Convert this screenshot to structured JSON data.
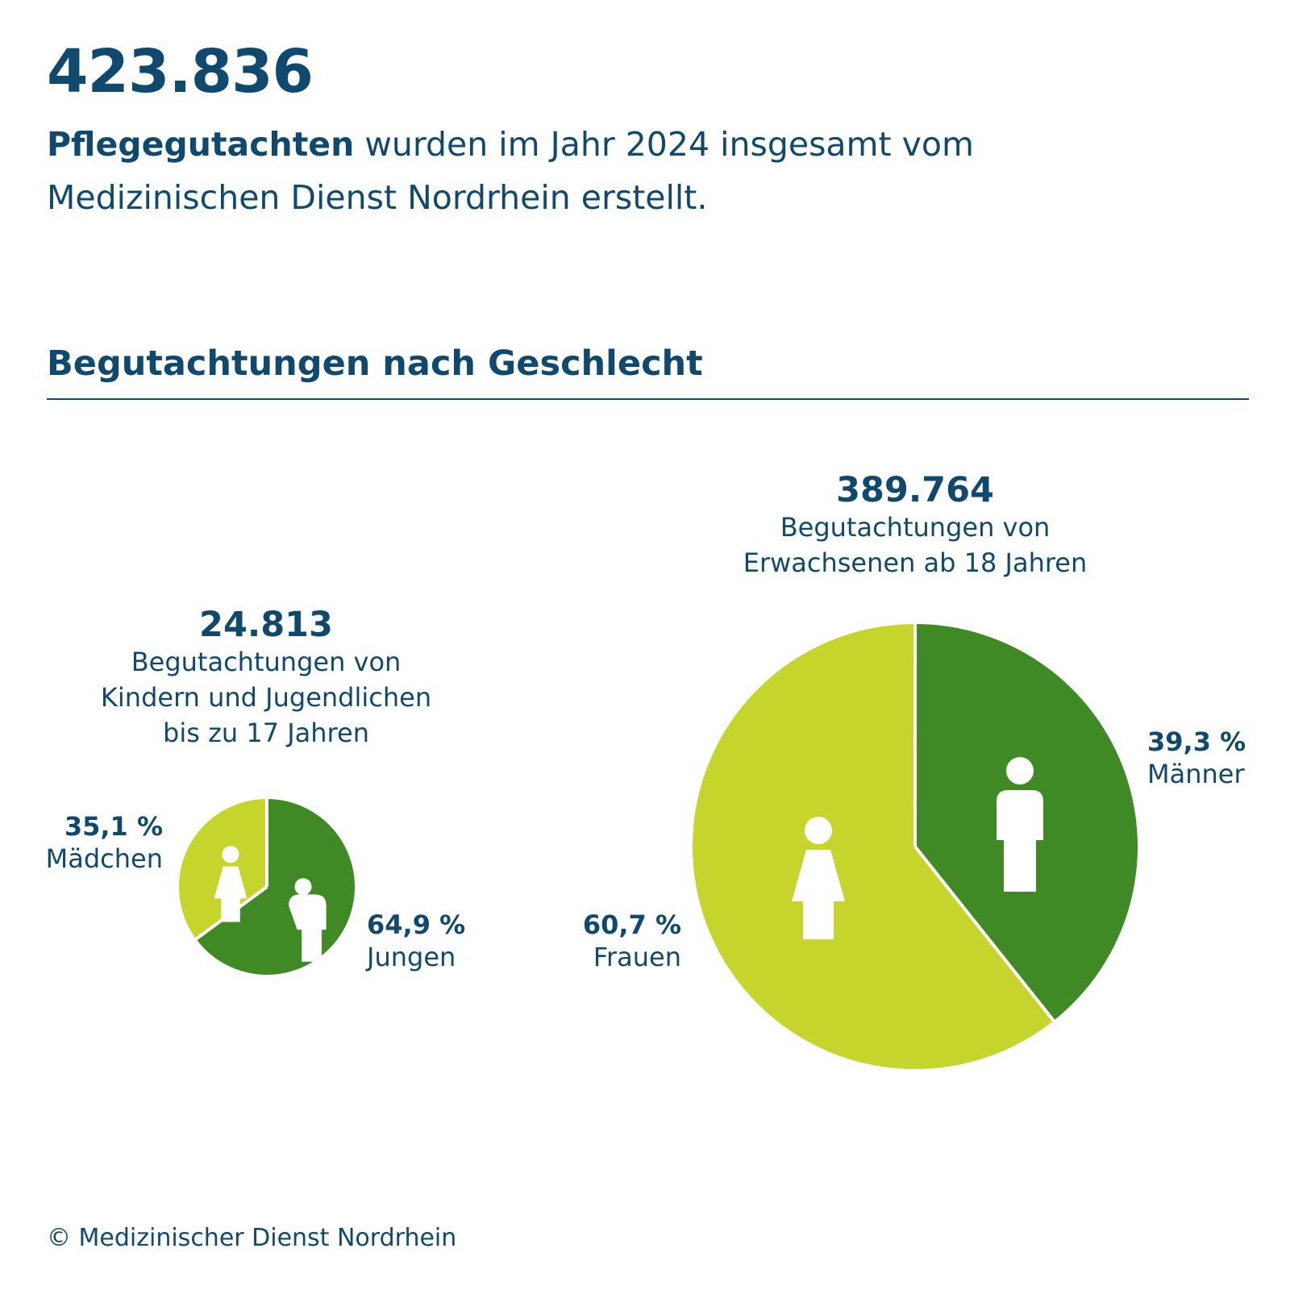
{
  "header": {
    "total": "423.836",
    "intro_bold": "Pflegegutachten",
    "intro_rest": " wurden im Jahr 2024 insgesamt vom Medizinischen Dienst Nordrhein erstellt."
  },
  "section": {
    "title": "Begutachtungen nach Geschlecht"
  },
  "colors": {
    "text": "#0f4a6e",
    "dark_green": "#3f8a24",
    "light_green": "#c5d52c"
  },
  "children": {
    "total": "24.813",
    "subtitle_lines": [
      "Begutachtungen von",
      "Kindern und Jugendlichen",
      "bis zu 17 Jahren"
    ],
    "girls_pct": "35,1 %",
    "girls_label": "Mädchen",
    "boys_pct": "64,9 %",
    "boys_label": "Jungen"
  },
  "adults": {
    "total": "389.764",
    "subtitle_lines": [
      "Begutachtungen von",
      "Erwachsenen ab 18 Jahren"
    ],
    "men_pct": "39,3 %",
    "men_label": "Männer",
    "women_pct": "60,7 %",
    "women_label": "Frauen"
  },
  "footer": {
    "copyright": "© Medizinischer Dienst Nordrhein"
  },
  "chart_data": [
    {
      "type": "pie",
      "total": 24813,
      "categories": [
        "Mädchen",
        "Jungen"
      ],
      "values": [
        35.1,
        64.9
      ],
      "colors": [
        "#c5d52c",
        "#3f8a24"
      ],
      "icons": [
        "female-icon",
        "male-icon"
      ]
    },
    {
      "type": "pie",
      "total": 389764,
      "categories": [
        "Frauen",
        "Männer"
      ],
      "values": [
        60.7,
        39.3
      ],
      "colors": [
        "#c5d52c",
        "#3f8a24"
      ],
      "icons": [
        "female-icon",
        "male-icon"
      ]
    }
  ]
}
